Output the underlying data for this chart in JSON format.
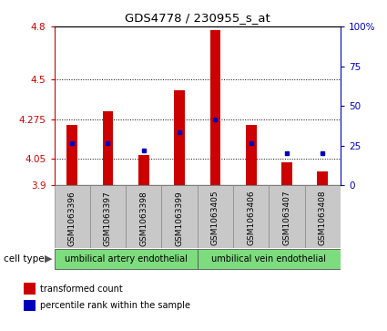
{
  "title": "GDS4778 / 230955_s_at",
  "samples": [
    "GSM1063396",
    "GSM1063397",
    "GSM1063398",
    "GSM1063399",
    "GSM1063405",
    "GSM1063406",
    "GSM1063407",
    "GSM1063408"
  ],
  "red_values": [
    4.24,
    4.32,
    4.07,
    4.44,
    4.78,
    4.24,
    4.03,
    3.98
  ],
  "blue_values": [
    4.14,
    4.14,
    4.1,
    4.2,
    4.275,
    4.14,
    4.08,
    4.08
  ],
  "ymin": 3.9,
  "ymax": 4.8,
  "yticks": [
    3.9,
    4.05,
    4.275,
    4.5,
    4.8
  ],
  "ytick_labels": [
    "3.9",
    "4.05",
    "4.275",
    "4.5",
    "4.8"
  ],
  "y2ticks": [
    0,
    25,
    50,
    75,
    100
  ],
  "y2tick_labels": [
    "0",
    "25",
    "50",
    "75",
    "100%"
  ],
  "cell_groups": [
    {
      "label": "umbilical artery endothelial",
      "start": 0,
      "end": 4
    },
    {
      "label": "umbilical vein endothelial",
      "start": 4,
      "end": 8
    }
  ],
  "bar_width": 0.3,
  "red_color": "#cc0000",
  "blue_color": "#0000bb",
  "plot_bg": "#ffffff",
  "label_bg": "#c8c8c8",
  "group_color": "#7ddc7d",
  "legend_red_label": "transformed count",
  "legend_blue_label": "percentile rank within the sample",
  "cell_type_label": "cell type"
}
